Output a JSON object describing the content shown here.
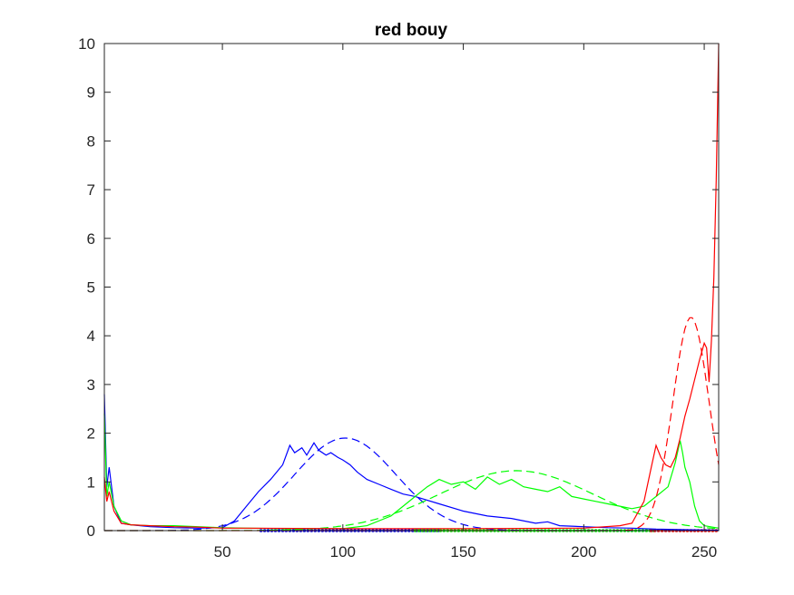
{
  "chart_data": {
    "type": "line",
    "title": "red bouy",
    "xlabel": "",
    "ylabel": "",
    "xlim": [
      1,
      256
    ],
    "ylim": [
      0,
      10
    ],
    "xticks": [
      50,
      100,
      150,
      200,
      250
    ],
    "yticks": [
      0,
      1,
      2,
      3,
      4,
      5,
      6,
      7,
      8,
      9,
      10
    ],
    "grid": false,
    "legend": "none",
    "series": [
      {
        "color": "#0000ff",
        "style": "solid",
        "x": [
          1,
          2,
          3,
          5,
          8,
          12,
          20,
          30,
          40,
          50,
          55,
          60,
          65,
          70,
          75,
          78,
          80,
          83,
          85,
          88,
          90,
          93,
          95,
          98,
          100,
          103,
          106,
          110,
          115,
          120,
          125,
          130,
          140,
          150,
          160,
          170,
          180,
          185,
          190,
          200,
          210,
          220,
          230,
          240,
          256
        ],
        "y": [
          2.8,
          0.9,
          1.3,
          0.5,
          0.15,
          0.12,
          0.08,
          0.06,
          0.05,
          0.06,
          0.2,
          0.5,
          0.8,
          1.05,
          1.35,
          1.75,
          1.6,
          1.7,
          1.55,
          1.8,
          1.65,
          1.55,
          1.6,
          1.5,
          1.45,
          1.35,
          1.2,
          1.05,
          0.95,
          0.85,
          0.75,
          0.7,
          0.55,
          0.4,
          0.3,
          0.25,
          0.15,
          0.18,
          0.1,
          0.08,
          0.06,
          0.05,
          0.03,
          0.02,
          0.01
        ]
      },
      {
        "color": "#0000ff",
        "style": "dashed",
        "mu": 101,
        "sigma": 21,
        "peak": 1.9
      },
      {
        "color": "#00ff00",
        "style": "solid",
        "x": [
          1,
          2,
          3,
          5,
          8,
          12,
          20,
          30,
          40,
          50,
          60,
          80,
          100,
          110,
          120,
          125,
          130,
          135,
          140,
          145,
          150,
          155,
          160,
          165,
          170,
          175,
          180,
          185,
          190,
          195,
          200,
          205,
          210,
          215,
          220,
          225,
          230,
          235,
          238,
          240,
          241,
          242,
          244,
          246,
          248,
          250,
          256
        ],
        "y": [
          2.4,
          0.7,
          1.0,
          0.5,
          0.2,
          0.12,
          0.1,
          0.1,
          0.08,
          0.06,
          0.05,
          0.04,
          0.04,
          0.1,
          0.3,
          0.5,
          0.7,
          0.9,
          1.05,
          0.95,
          1.0,
          0.85,
          1.1,
          0.95,
          1.05,
          0.9,
          0.85,
          0.8,
          0.9,
          0.7,
          0.65,
          0.6,
          0.55,
          0.5,
          0.45,
          0.5,
          0.7,
          0.9,
          1.4,
          1.85,
          1.6,
          1.3,
          1.0,
          0.5,
          0.2,
          0.1,
          0.05
        ]
      },
      {
        "color": "#00ff00",
        "style": "dashed",
        "mu": 172,
        "sigma": 32,
        "peak": 1.23
      },
      {
        "color": "#ff0000",
        "style": "solid",
        "x": [
          1,
          2,
          3,
          5,
          8,
          12,
          20,
          30,
          40,
          50,
          60,
          100,
          150,
          200,
          215,
          220,
          225,
          228,
          230,
          232,
          234,
          236,
          238,
          240,
          242,
          244,
          246,
          248,
          250,
          251,
          252,
          253,
          254,
          255,
          256
        ],
        "y": [
          1.1,
          0.6,
          0.8,
          0.4,
          0.15,
          0.12,
          0.1,
          0.08,
          0.07,
          0.05,
          0.05,
          0.04,
          0.04,
          0.05,
          0.1,
          0.15,
          0.6,
          1.3,
          1.75,
          1.5,
          1.35,
          1.3,
          1.5,
          1.9,
          2.35,
          2.7,
          3.1,
          3.5,
          3.85,
          3.75,
          3.05,
          3.9,
          5.2,
          7.2,
          10.0
        ]
      },
      {
        "color": "#ff0000",
        "style": "dashed",
        "mu": 244.5,
        "sigma": 7.5,
        "peak": 4.38
      }
    ],
    "markers": [
      {
        "color": "#0000ff",
        "x_range": [
          66,
          140
        ]
      },
      {
        "color": "#00ff00",
        "x_range": [
          130,
          230
        ]
      },
      {
        "color": "#ff0000",
        "x_range": [
          228,
          256
        ]
      }
    ]
  }
}
